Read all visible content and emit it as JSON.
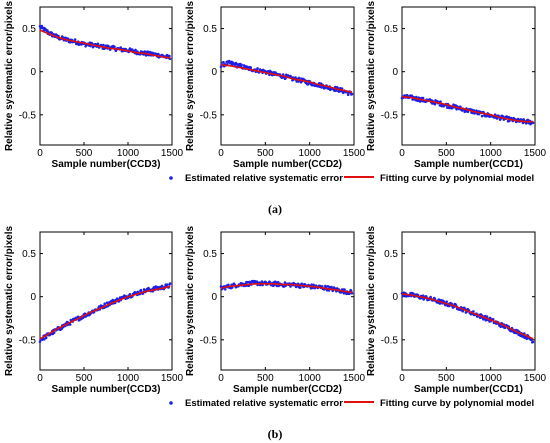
{
  "figure": {
    "panel_labels": [
      "(a)",
      "(b)"
    ],
    "legend": {
      "points_label": "Estimated relative systematic error",
      "curve_label": "Fitting curve by polynomial model"
    },
    "colors": {
      "points": "#1f1fe6",
      "curve": "#e01010",
      "axes": "#000000"
    }
  },
  "chart_data": [
    {
      "type": "scatter",
      "panel": "(a)",
      "xlabel": "Sample number(CCD3)",
      "ylabel": "Relative systematic error/pixels",
      "xlim": [
        0,
        1500
      ],
      "ylim": [
        -0.85,
        0.75
      ],
      "xticks": [
        0,
        500,
        1000,
        1500
      ],
      "yticks": [
        -0.5,
        0,
        0.5
      ],
      "series": [
        {
          "name": "Estimated relative systematic error",
          "kind": "points",
          "x": [
            0,
            100,
            200,
            300,
            400,
            500,
            600,
            700,
            800,
            900,
            1000,
            1100,
            1200,
            1300,
            1400,
            1480
          ],
          "y": [
            0.52,
            0.45,
            0.4,
            0.37,
            0.35,
            0.32,
            0.31,
            0.29,
            0.28,
            0.26,
            0.25,
            0.23,
            0.21,
            0.2,
            0.18,
            0.16
          ]
        },
        {
          "name": "Fitting curve by polynomial model",
          "kind": "curve",
          "x": [
            0,
            100,
            200,
            300,
            400,
            500,
            600,
            700,
            800,
            900,
            1000,
            1100,
            1200,
            1300,
            1400,
            1480
          ],
          "y": [
            0.48,
            0.44,
            0.4,
            0.37,
            0.35,
            0.33,
            0.31,
            0.29,
            0.27,
            0.26,
            0.24,
            0.22,
            0.21,
            0.19,
            0.17,
            0.16
          ]
        }
      ]
    },
    {
      "type": "scatter",
      "panel": "(a)",
      "xlabel": "Sample number(CCD2)",
      "ylabel": "",
      "xlim": [
        0,
        1500
      ],
      "ylim": [
        -0.85,
        0.75
      ],
      "xticks": [
        0,
        500,
        1000,
        1500
      ],
      "yticks": [
        -0.5,
        0,
        0.5
      ],
      "series": [
        {
          "name": "Estimated relative systematic error",
          "kind": "points",
          "x": [
            0,
            100,
            200,
            300,
            400,
            500,
            600,
            700,
            800,
            900,
            1000,
            1100,
            1200,
            1300,
            1400,
            1480
          ],
          "y": [
            0.08,
            0.1,
            0.07,
            0.04,
            0.02,
            0.0,
            -0.03,
            -0.05,
            -0.08,
            -0.1,
            -0.13,
            -0.15,
            -0.18,
            -0.2,
            -0.23,
            -0.26
          ]
        },
        {
          "name": "Fitting curve by polynomial model",
          "kind": "curve",
          "x": [
            0,
            100,
            200,
            300,
            400,
            500,
            600,
            700,
            800,
            900,
            1000,
            1100,
            1200,
            1300,
            1400,
            1480
          ],
          "y": [
            0.08,
            0.07,
            0.05,
            0.03,
            0.01,
            -0.01,
            -0.03,
            -0.05,
            -0.08,
            -0.1,
            -0.12,
            -0.15,
            -0.17,
            -0.2,
            -0.22,
            -0.24
          ]
        }
      ]
    },
    {
      "type": "scatter",
      "panel": "(a)",
      "xlabel": "Sample number(CCD1)",
      "ylabel": "",
      "xlim": [
        0,
        1500
      ],
      "ylim": [
        -0.85,
        0.75
      ],
      "xticks": [
        0,
        500,
        1000,
        1500
      ],
      "yticks": [
        -0.5,
        0,
        0.5
      ],
      "series": [
        {
          "name": "Estimated relative systematic error",
          "kind": "points",
          "x": [
            0,
            100,
            200,
            300,
            400,
            500,
            600,
            700,
            800,
            900,
            1000,
            1100,
            1200,
            1300,
            1400,
            1480
          ],
          "y": [
            -0.29,
            -0.3,
            -0.32,
            -0.34,
            -0.36,
            -0.39,
            -0.41,
            -0.44,
            -0.46,
            -0.49,
            -0.51,
            -0.53,
            -0.55,
            -0.57,
            -0.58,
            -0.59
          ]
        },
        {
          "name": "Fitting curve by polynomial model",
          "kind": "curve",
          "x": [
            0,
            100,
            200,
            300,
            400,
            500,
            600,
            700,
            800,
            900,
            1000,
            1100,
            1200,
            1300,
            1400,
            1480
          ],
          "y": [
            -0.29,
            -0.3,
            -0.32,
            -0.34,
            -0.36,
            -0.38,
            -0.41,
            -0.43,
            -0.46,
            -0.48,
            -0.5,
            -0.53,
            -0.55,
            -0.57,
            -0.58,
            -0.58
          ]
        }
      ]
    },
    {
      "type": "scatter",
      "panel": "(b)",
      "xlabel": "Sample number(CCD3)",
      "ylabel": "Relative systematic error/pixels",
      "xlim": [
        0,
        1500
      ],
      "ylim": [
        -0.85,
        0.75
      ],
      "xticks": [
        0,
        500,
        1000,
        1500
      ],
      "yticks": [
        -0.5,
        0,
        0.5
      ],
      "series": [
        {
          "name": "Estimated relative systematic error",
          "kind": "points",
          "x": [
            0,
            100,
            200,
            300,
            400,
            500,
            600,
            700,
            800,
            900,
            1000,
            1100,
            1200,
            1300,
            1400,
            1480
          ],
          "y": [
            -0.5,
            -0.44,
            -0.38,
            -0.32,
            -0.27,
            -0.22,
            -0.17,
            -0.12,
            -0.07,
            -0.03,
            0.01,
            0.04,
            0.07,
            0.09,
            0.11,
            0.13
          ]
        },
        {
          "name": "Fitting curve by polynomial model",
          "kind": "curve",
          "x": [
            0,
            100,
            200,
            300,
            400,
            500,
            600,
            700,
            800,
            900,
            1000,
            1100,
            1200,
            1300,
            1400,
            1480
          ],
          "y": [
            -0.49,
            -0.43,
            -0.37,
            -0.32,
            -0.27,
            -0.22,
            -0.17,
            -0.13,
            -0.08,
            -0.04,
            0.0,
            0.03,
            0.06,
            0.08,
            0.1,
            0.12
          ]
        }
      ]
    },
    {
      "type": "scatter",
      "panel": "(b)",
      "xlabel": "Sample number(CCD2)",
      "ylabel": "",
      "xlim": [
        0,
        1500
      ],
      "ylim": [
        -0.85,
        0.75
      ],
      "xticks": [
        0,
        500,
        1000,
        1500
      ],
      "yticks": [
        -0.5,
        0,
        0.5
      ],
      "series": [
        {
          "name": "Estimated relative systematic error",
          "kind": "points",
          "x": [
            0,
            100,
            200,
            300,
            400,
            500,
            600,
            700,
            800,
            900,
            1000,
            1100,
            1200,
            1300,
            1400,
            1480
          ],
          "y": [
            0.1,
            0.12,
            0.14,
            0.15,
            0.16,
            0.15,
            0.15,
            0.14,
            0.14,
            0.13,
            0.12,
            0.11,
            0.1,
            0.08,
            0.06,
            0.05
          ]
        },
        {
          "name": "Fitting curve by polynomial model",
          "kind": "curve",
          "x": [
            0,
            100,
            200,
            300,
            400,
            500,
            600,
            700,
            800,
            900,
            1000,
            1100,
            1200,
            1300,
            1400,
            1480
          ],
          "y": [
            0.1,
            0.12,
            0.13,
            0.14,
            0.15,
            0.15,
            0.15,
            0.14,
            0.14,
            0.13,
            0.12,
            0.11,
            0.09,
            0.08,
            0.06,
            0.05
          ]
        }
      ]
    },
    {
      "type": "scatter",
      "panel": "(b)",
      "xlabel": "Sample number(CCD1)",
      "ylabel": "",
      "xlim": [
        0,
        1500
      ],
      "ylim": [
        -0.85,
        0.75
      ],
      "xticks": [
        0,
        500,
        1000,
        1500
      ],
      "yticks": [
        -0.5,
        0,
        0.5
      ],
      "series": [
        {
          "name": "Estimated relative systematic error",
          "kind": "points",
          "x": [
            0,
            100,
            200,
            300,
            400,
            500,
            600,
            700,
            800,
            900,
            1000,
            1100,
            1200,
            1300,
            1400,
            1480
          ],
          "y": [
            0.03,
            0.02,
            0.0,
            -0.02,
            -0.05,
            -0.08,
            -0.11,
            -0.15,
            -0.19,
            -0.23,
            -0.27,
            -0.32,
            -0.36,
            -0.41,
            -0.46,
            -0.51
          ]
        },
        {
          "name": "Fitting curve by polynomial model",
          "kind": "curve",
          "x": [
            0,
            100,
            200,
            300,
            400,
            500,
            600,
            700,
            800,
            900,
            1000,
            1100,
            1200,
            1300,
            1400,
            1480
          ],
          "y": [
            0.03,
            0.02,
            0.0,
            -0.02,
            -0.05,
            -0.08,
            -0.11,
            -0.15,
            -0.19,
            -0.23,
            -0.27,
            -0.31,
            -0.36,
            -0.41,
            -0.45,
            -0.49
          ]
        }
      ]
    }
  ]
}
